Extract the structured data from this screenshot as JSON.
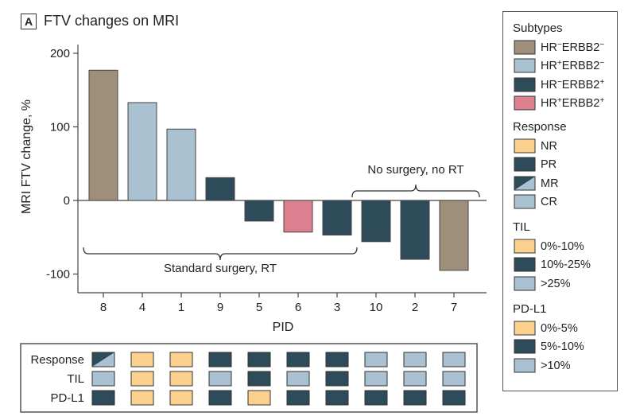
{
  "panel": {
    "letter": "A",
    "title": "FTV changes on MRI"
  },
  "colors": {
    "hrneg_erbb2neg": "#9e8e7a",
    "hrpos_erbb2neg": "#a9c1d0",
    "hrneg_erbb2pos": "#2e4b5a",
    "hrpos_erbb2pos": "#dc7f8e",
    "response_NR": "#fbcf8c",
    "response_PR": "#2e4b5a",
    "response_CR": "#a9c1d0",
    "low": "#fbcf8c",
    "mid": "#2e4b5a",
    "high": "#a9c1d0"
  },
  "chart_data": {
    "type": "bar",
    "title": "FTV changes on MRI",
    "xlabel": "PID",
    "ylabel": "MRI FTV change, %",
    "ylim": [
      -110,
      200
    ],
    "yticks": [
      200,
      100,
      0,
      -100
    ],
    "ytick_labels": [
      "200",
      "100",
      "0",
      "-100"
    ],
    "categories": [
      "8",
      "4",
      "1",
      "9",
      "5",
      "6",
      "3",
      "10",
      "2",
      "7"
    ],
    "values": [
      177,
      133,
      97,
      31,
      -28,
      -43,
      -47,
      -56,
      -80,
      -95
    ],
    "subtypes": [
      "HR-ERBB2-",
      "HR+ERBB2-",
      "HR+ERBB2-",
      "HR-ERBB2+",
      "HR-ERBB2+",
      "HR+ERBB2+",
      "HR-ERBB2+",
      "HR-ERBB2+",
      "HR-ERBB2+",
      "HR-ERBB2-"
    ],
    "annotations": [
      {
        "text": "Standard surgery, RT",
        "from_index": 0,
        "to_index": 6
      },
      {
        "text": "No surgery, no RT",
        "from_index": 7,
        "to_index": 9
      }
    ],
    "heatmap": {
      "rows": [
        {
          "label": "Response",
          "values": [
            "MR",
            "NR",
            "NR",
            "PR",
            "PR",
            "PR",
            "PR",
            "CR",
            "CR",
            "CR"
          ]
        },
        {
          "label": "TIL",
          "values": [
            ">25%",
            "0%-10%",
            "0%-10%",
            ">25%",
            "10%-25%",
            ">25%",
            "10%-25%",
            ">25%",
            ">25%",
            ">25%"
          ]
        },
        {
          "label": "PD-L1",
          "values": [
            "5%-10%",
            "0%-5%",
            "0%-5%",
            "5%-10%",
            "0%-5%",
            "5%-10%",
            "5%-10%",
            "5%-10%",
            "5%-10%",
            "5%-10%"
          ]
        }
      ]
    }
  },
  "legend": {
    "subtypes": {
      "title": "Subtypes",
      "items": [
        {
          "base": "HR",
          "s1": "−",
          "mid": "ERBB2",
          "s2": "−",
          "key": "HR-ERBB2-"
        },
        {
          "base": "HR",
          "s1": "+",
          "mid": "ERBB2",
          "s2": "−",
          "key": "HR+ERBB2-"
        },
        {
          "base": "HR",
          "s1": "−",
          "mid": "ERBB2",
          "s2": "+",
          "key": "HR-ERBB2+"
        },
        {
          "base": "HR",
          "s1": "+",
          "mid": "ERBB2",
          "s2": "+",
          "key": "HR+ERBB2+"
        }
      ]
    },
    "response": {
      "title": "Response",
      "items": [
        "NR",
        "PR",
        "MR",
        "CR"
      ]
    },
    "til": {
      "title": "TIL",
      "items": [
        "0%-10%",
        "10%-25%",
        ">25%"
      ]
    },
    "pdl1": {
      "title": "PD-L1",
      "items": [
        "0%-5%",
        "5%-10%",
        ">10%"
      ]
    }
  }
}
